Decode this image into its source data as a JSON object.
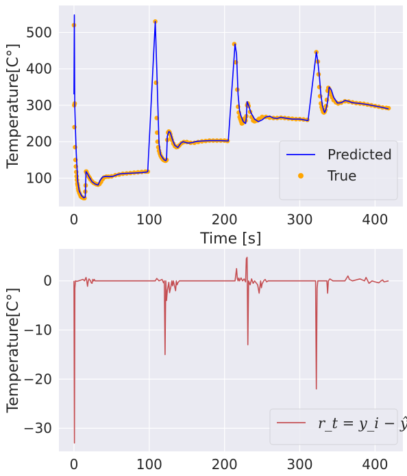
{
  "chart_data": [
    {
      "type": "line",
      "xlabel": "Time [s]",
      "ylabel": "Temperature[C°]",
      "xlim": [
        -20,
        437
      ],
      "ylim": [
        22,
        574
      ],
      "xticks": [
        0,
        100,
        200,
        300,
        400
      ],
      "yticks": [
        100,
        200,
        300,
        400,
        500
      ],
      "grid": true,
      "legend_position": "lower-right",
      "series": [
        {
          "name": "Predicted",
          "kind": "line",
          "color": "#0000ff",
          "x": [
            0,
            0.5,
            1,
            2,
            3,
            4,
            5,
            7,
            10,
            13,
            14,
            15,
            16,
            18,
            20,
            24,
            28,
            32,
            35,
            38,
            42,
            47,
            52,
            58,
            62,
            70,
            80,
            90,
            97,
            98,
            108,
            110,
            112,
            113,
            115,
            118,
            120,
            122,
            123,
            124,
            126,
            128,
            131,
            134,
            138,
            142,
            145,
            148,
            152,
            158,
            163,
            170,
            180,
            195,
            205,
            214,
            216,
            218,
            220,
            222,
            225,
            228,
            229,
            230,
            232,
            235,
            240,
            245,
            250,
            255,
            260,
            265,
            270,
            275,
            280,
            290,
            300,
            311,
            322,
            324,
            326,
            328,
            330,
            332,
            333,
            335,
            337,
            339,
            342,
            345,
            350,
            355,
            360,
            365,
            370,
            375,
            380,
            390,
            400,
            410,
            418
          ],
          "y": [
            330,
            548,
            300,
            230,
            170,
            130,
            90,
            65,
            52,
            46,
            47,
            48,
            118,
            112,
            104,
            90,
            84,
            81,
            95,
            103,
            105,
            104,
            105,
            110,
            112,
            113,
            114,
            115,
            117,
            118,
            530,
            400,
            260,
            195,
            165,
            155,
            150,
            148,
            152,
            215,
            228,
            225,
            205,
            190,
            184,
            196,
            200,
            198,
            196,
            198,
            201,
            202,
            203,
            203,
            202,
            468,
            440,
            330,
            285,
            270,
            255,
            250,
            265,
            310,
            300,
            280,
            262,
            255,
            260,
            268,
            270,
            265,
            264,
            267,
            265,
            262,
            262,
            258,
            446,
            420,
            380,
            330,
            300,
            285,
            280,
            290,
            310,
            350,
            342,
            322,
            306,
            307,
            313,
            311,
            307,
            306,
            305,
            302,
            298,
            294,
            290
          ]
        },
        {
          "name": "True",
          "kind": "scatter",
          "color": "#ffa500",
          "x": [
            0,
            0.3,
            0.6,
            1,
            1.5,
            2,
            2.5,
            3,
            3.5,
            4,
            4.5,
            5,
            5.5,
            6,
            7,
            8,
            9,
            10,
            11,
            12,
            13,
            14,
            15,
            15.5,
            16,
            16.5,
            17,
            18,
            19,
            20,
            21,
            22,
            24,
            26,
            28,
            30,
            32,
            34,
            36,
            38,
            40,
            43,
            46,
            50,
            55,
            60,
            65,
            70,
            75,
            80,
            85,
            90,
            95,
            98,
            108,
            109,
            110,
            110.5,
            111,
            112,
            113,
            114,
            115,
            116,
            117,
            118,
            119,
            120,
            121,
            122,
            123,
            124,
            125,
            126,
            127,
            128,
            129,
            130,
            132,
            134,
            136,
            138,
            140,
            143,
            146,
            150,
            155,
            160,
            165,
            170,
            175,
            180,
            185,
            190,
            195,
            200,
            204,
            213,
            215,
            217,
            218,
            219,
            220,
            221,
            222,
            223,
            224,
            225,
            226,
            227,
            228,
            229,
            230,
            231,
            232,
            234,
            236,
            238,
            240,
            243,
            246,
            250,
            255,
            260,
            265,
            270,
            275,
            280,
            285,
            290,
            295,
            300,
            305,
            310,
            322,
            324,
            325,
            326,
            327,
            328,
            329,
            330,
            331,
            332,
            333,
            334,
            335,
            336,
            337,
            338,
            339,
            340,
            341,
            343,
            345,
            348,
            351,
            355,
            360,
            365,
            370,
            375,
            380,
            385,
            390,
            395,
            400,
            405,
            410,
            415,
            418
          ],
          "y": [
            520,
            300,
            240,
            305,
            185,
            150,
            132,
            117,
            105,
            95,
            85,
            80,
            72,
            66,
            60,
            55,
            50,
            48,
            47,
            46,
            45,
            45,
            63,
            80,
            118,
            118,
            114,
            110,
            106,
            103,
            100,
            96,
            91,
            87,
            85,
            83,
            82,
            84,
            90,
            97,
            102,
            104,
            104,
            105,
            108,
            110,
            112,
            113,
            114,
            115,
            116,
            117,
            118,
            118,
            530,
            362,
            265,
            225,
            200,
            185,
            175,
            168,
            162,
            158,
            155,
            152,
            150,
            149,
            148,
            148,
            150,
            205,
            225,
            228,
            226,
            220,
            212,
            205,
            195,
            188,
            185,
            186,
            190,
            196,
            199,
            199,
            197,
            197,
            199,
            201,
            202,
            203,
            203,
            203,
            203,
            203,
            202,
            468,
            418,
            343,
            296,
            280,
            268,
            262,
            256,
            250,
            251,
            258,
            263,
            260,
            258,
            270,
            300,
            305,
            298,
            282,
            268,
            258,
            256,
            258,
            263,
            268,
            268,
            266,
            265,
            265,
            266,
            265,
            264,
            263,
            262,
            262,
            261,
            260,
            446,
            420,
            385,
            350,
            325,
            305,
            295,
            288,
            282,
            280,
            282,
            287,
            298,
            315,
            340,
            348,
            345,
            338,
            330,
            322,
            314,
            308,
            305,
            307,
            311,
            310,
            308,
            306,
            305,
            304,
            302,
            300,
            298,
            296,
            294,
            293,
            292
          ]
        }
      ]
    },
    {
      "type": "line",
      "xlabel": "",
      "ylabel": "Temperature[C°]",
      "xlim": [
        -20,
        437
      ],
      "ylim": [
        -34.7,
        6.5
      ],
      "xticks": [
        0,
        100,
        200,
        300,
        400
      ],
      "yticks": [
        -30,
        -20,
        -10,
        0
      ],
      "grid": true,
      "legend_position": "lower-right",
      "series": [
        {
          "name": "r_t = y_i − ŷ_i",
          "kind": "line",
          "color": "#c44e52",
          "x": [
            0,
            0.6,
            1.2,
            2,
            4,
            8,
            12,
            14,
            16,
            17,
            18,
            19,
            20,
            22,
            23,
            24,
            25,
            26,
            27,
            28,
            29,
            30,
            40,
            60,
            80,
            98,
            108,
            110,
            113,
            117,
            119,
            120,
            121,
            122,
            123,
            124,
            126,
            127,
            129,
            130,
            131,
            132,
            135,
            136,
            137,
            138,
            140,
            150,
            160,
            180,
            200,
            214,
            216,
            217,
            218,
            219,
            220,
            222,
            224,
            226,
            228,
            229,
            230,
            231,
            232,
            234,
            236,
            238,
            240,
            244,
            246,
            248,
            249,
            250,
            252,
            254,
            256,
            258,
            260,
            270,
            280,
            290,
            300,
            311,
            321,
            322,
            323,
            324,
            326,
            330,
            334,
            336,
            337,
            338,
            340,
            344,
            346,
            350,
            360,
            364,
            366,
            370,
            380,
            386,
            388,
            392,
            396,
            400,
            405,
            408,
            410,
            412,
            418
          ],
          "y": [
            0,
            -33,
            -1.5,
            0,
            -0.1,
            0.1,
            0.3,
            0,
            0.7,
            0,
            -1.1,
            0,
            0.4,
            0,
            -0.4,
            -0.5,
            0.3,
            0,
            0.3,
            0,
            0,
            0,
            0,
            0,
            0,
            0,
            0,
            0.5,
            0,
            0.3,
            -0.4,
            0,
            -15,
            0,
            -4,
            -2,
            -0.3,
            -2.4,
            -1,
            0,
            -1,
            0,
            -2,
            0,
            -0.8,
            -0.4,
            0,
            0,
            0,
            0,
            0,
            0,
            2.5,
            0.5,
            0,
            0.6,
            0,
            0.6,
            0,
            0.4,
            -0.2,
            4.5,
            4.8,
            -13,
            0,
            -0.8,
            0.4,
            -0.5,
            0,
            -0.8,
            -2.5,
            0,
            -1.4,
            -0.6,
            0,
            0.3,
            -0.2,
            0,
            0,
            0,
            0,
            0,
            0,
            0,
            0,
            -22,
            -1.5,
            0,
            0,
            0,
            0,
            0,
            -2.5,
            0,
            0.4,
            0,
            0,
            0,
            0,
            1,
            0.3,
            0,
            0.4,
            0,
            0.7,
            -0.5,
            0,
            -0.2,
            -0.4,
            0,
            0.2,
            -0.2,
            0
          ]
        }
      ]
    }
  ]
}
